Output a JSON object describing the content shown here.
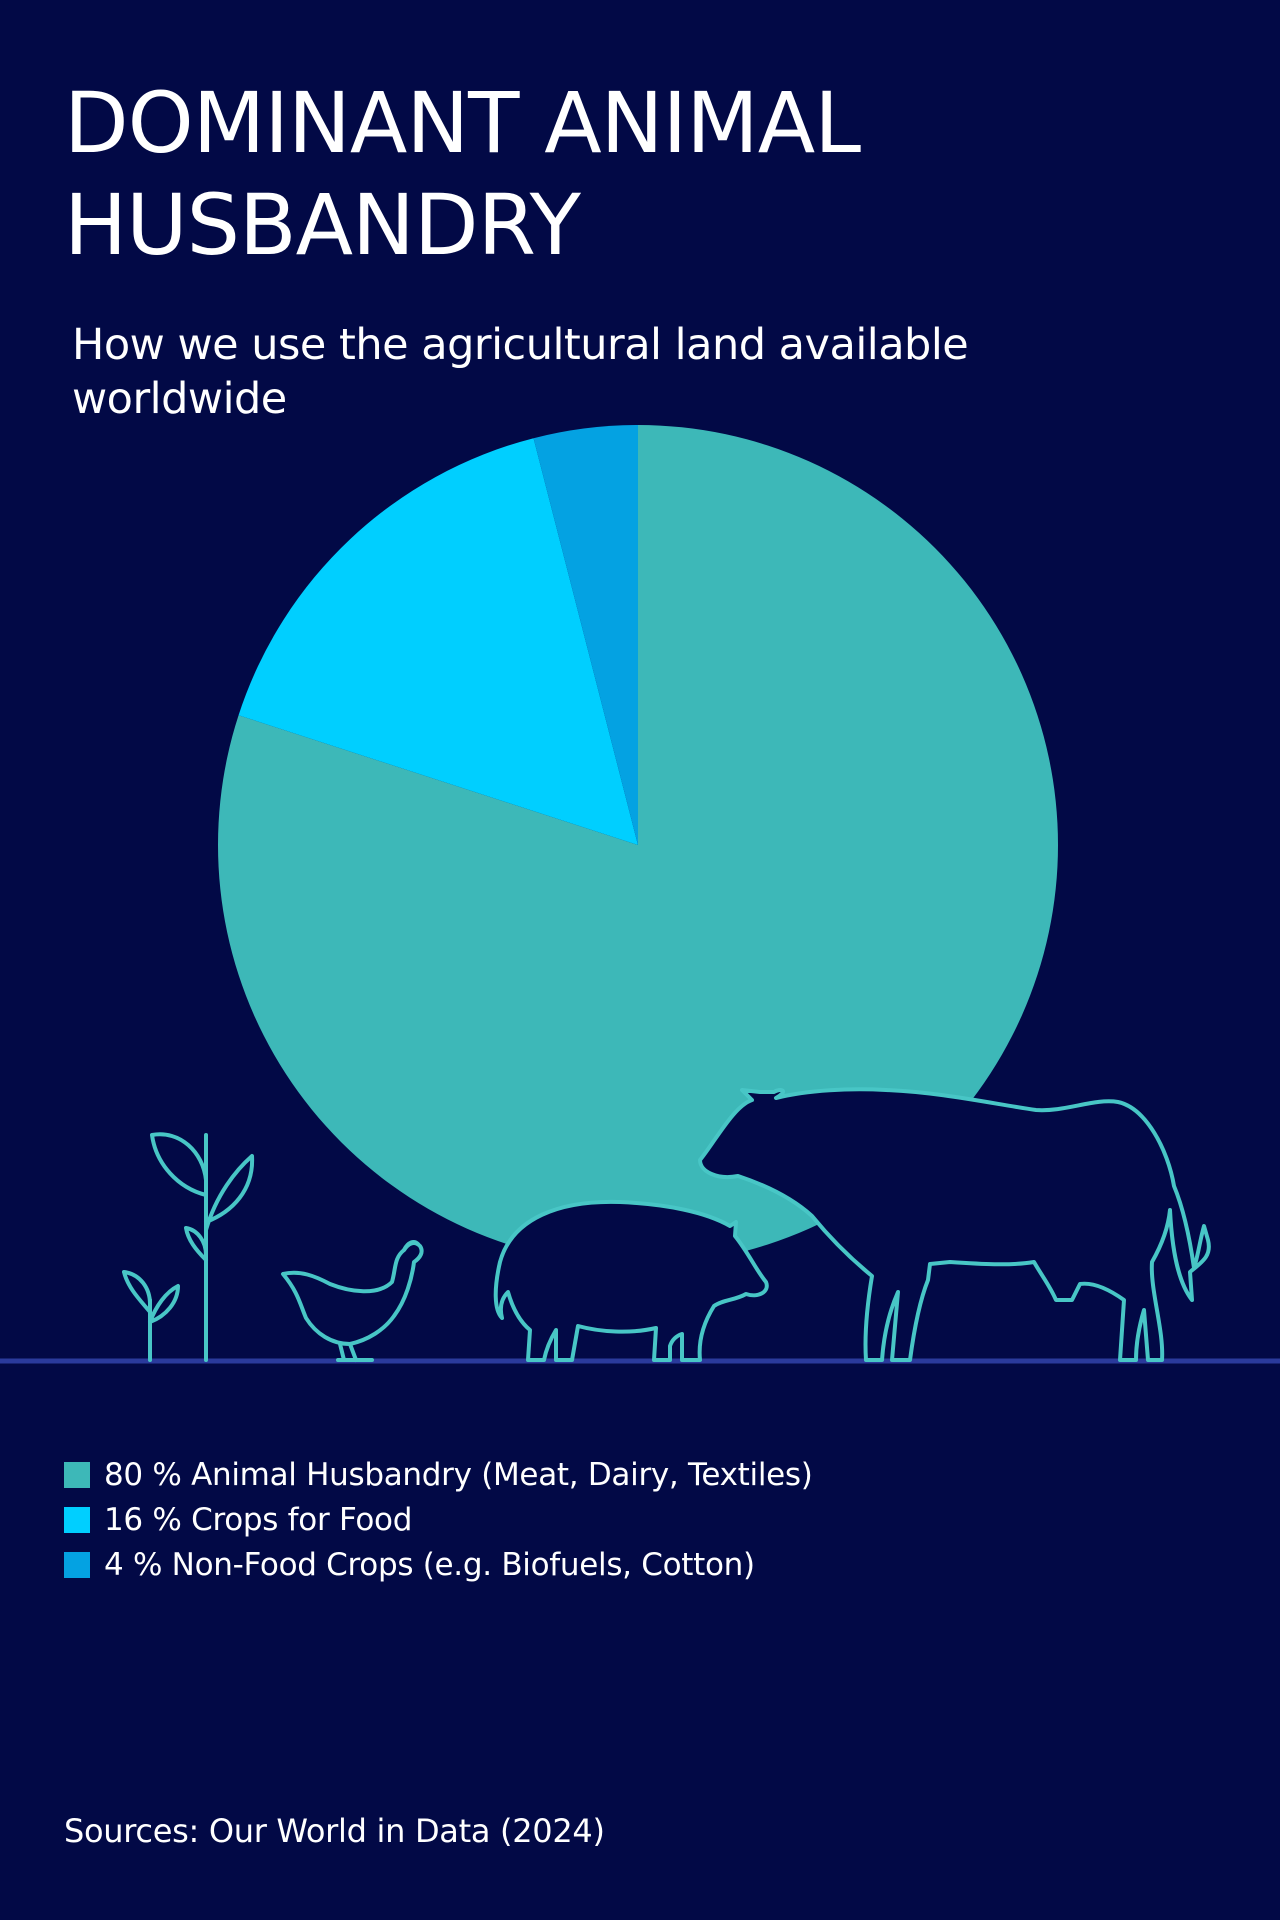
{
  "title": "DOMINANT ANIMAL HUSBANDRY",
  "subtitle": "How we use the agricultural land available worldwide",
  "colors": {
    "background": "#020946",
    "animal_husbandry": "#3db8b8",
    "crops_for_food": "#00cfff",
    "non_food_crops": "#04a2e2",
    "outline": "#48c6c6",
    "ground": "#2a3a9c"
  },
  "illustrations": [
    "plant-icon",
    "chicken-icon",
    "pig-icon",
    "cow-icon"
  ],
  "chart_data": {
    "type": "pie",
    "title": "DOMINANT ANIMAL HUSBANDRY",
    "subtitle": "How we use the agricultural land available worldwide",
    "unit": "%",
    "start": "12 o'clock, clockwise",
    "slices": [
      {
        "value": 80,
        "label": "80 % Animal Husbandry (Meat, Dairy, Textiles)",
        "color": "#3db8b8"
      },
      {
        "value": 16,
        "label": "16 % Crops for Food",
        "color": "#00cfff"
      },
      {
        "value": 4,
        "label": "4 % Non-Food Crops (e.g. Biofuels, Cotton)",
        "color": "#04a2e2"
      }
    ],
    "legend_position": "bottom-left"
  },
  "source": "Sources: Our World in Data (2024)"
}
